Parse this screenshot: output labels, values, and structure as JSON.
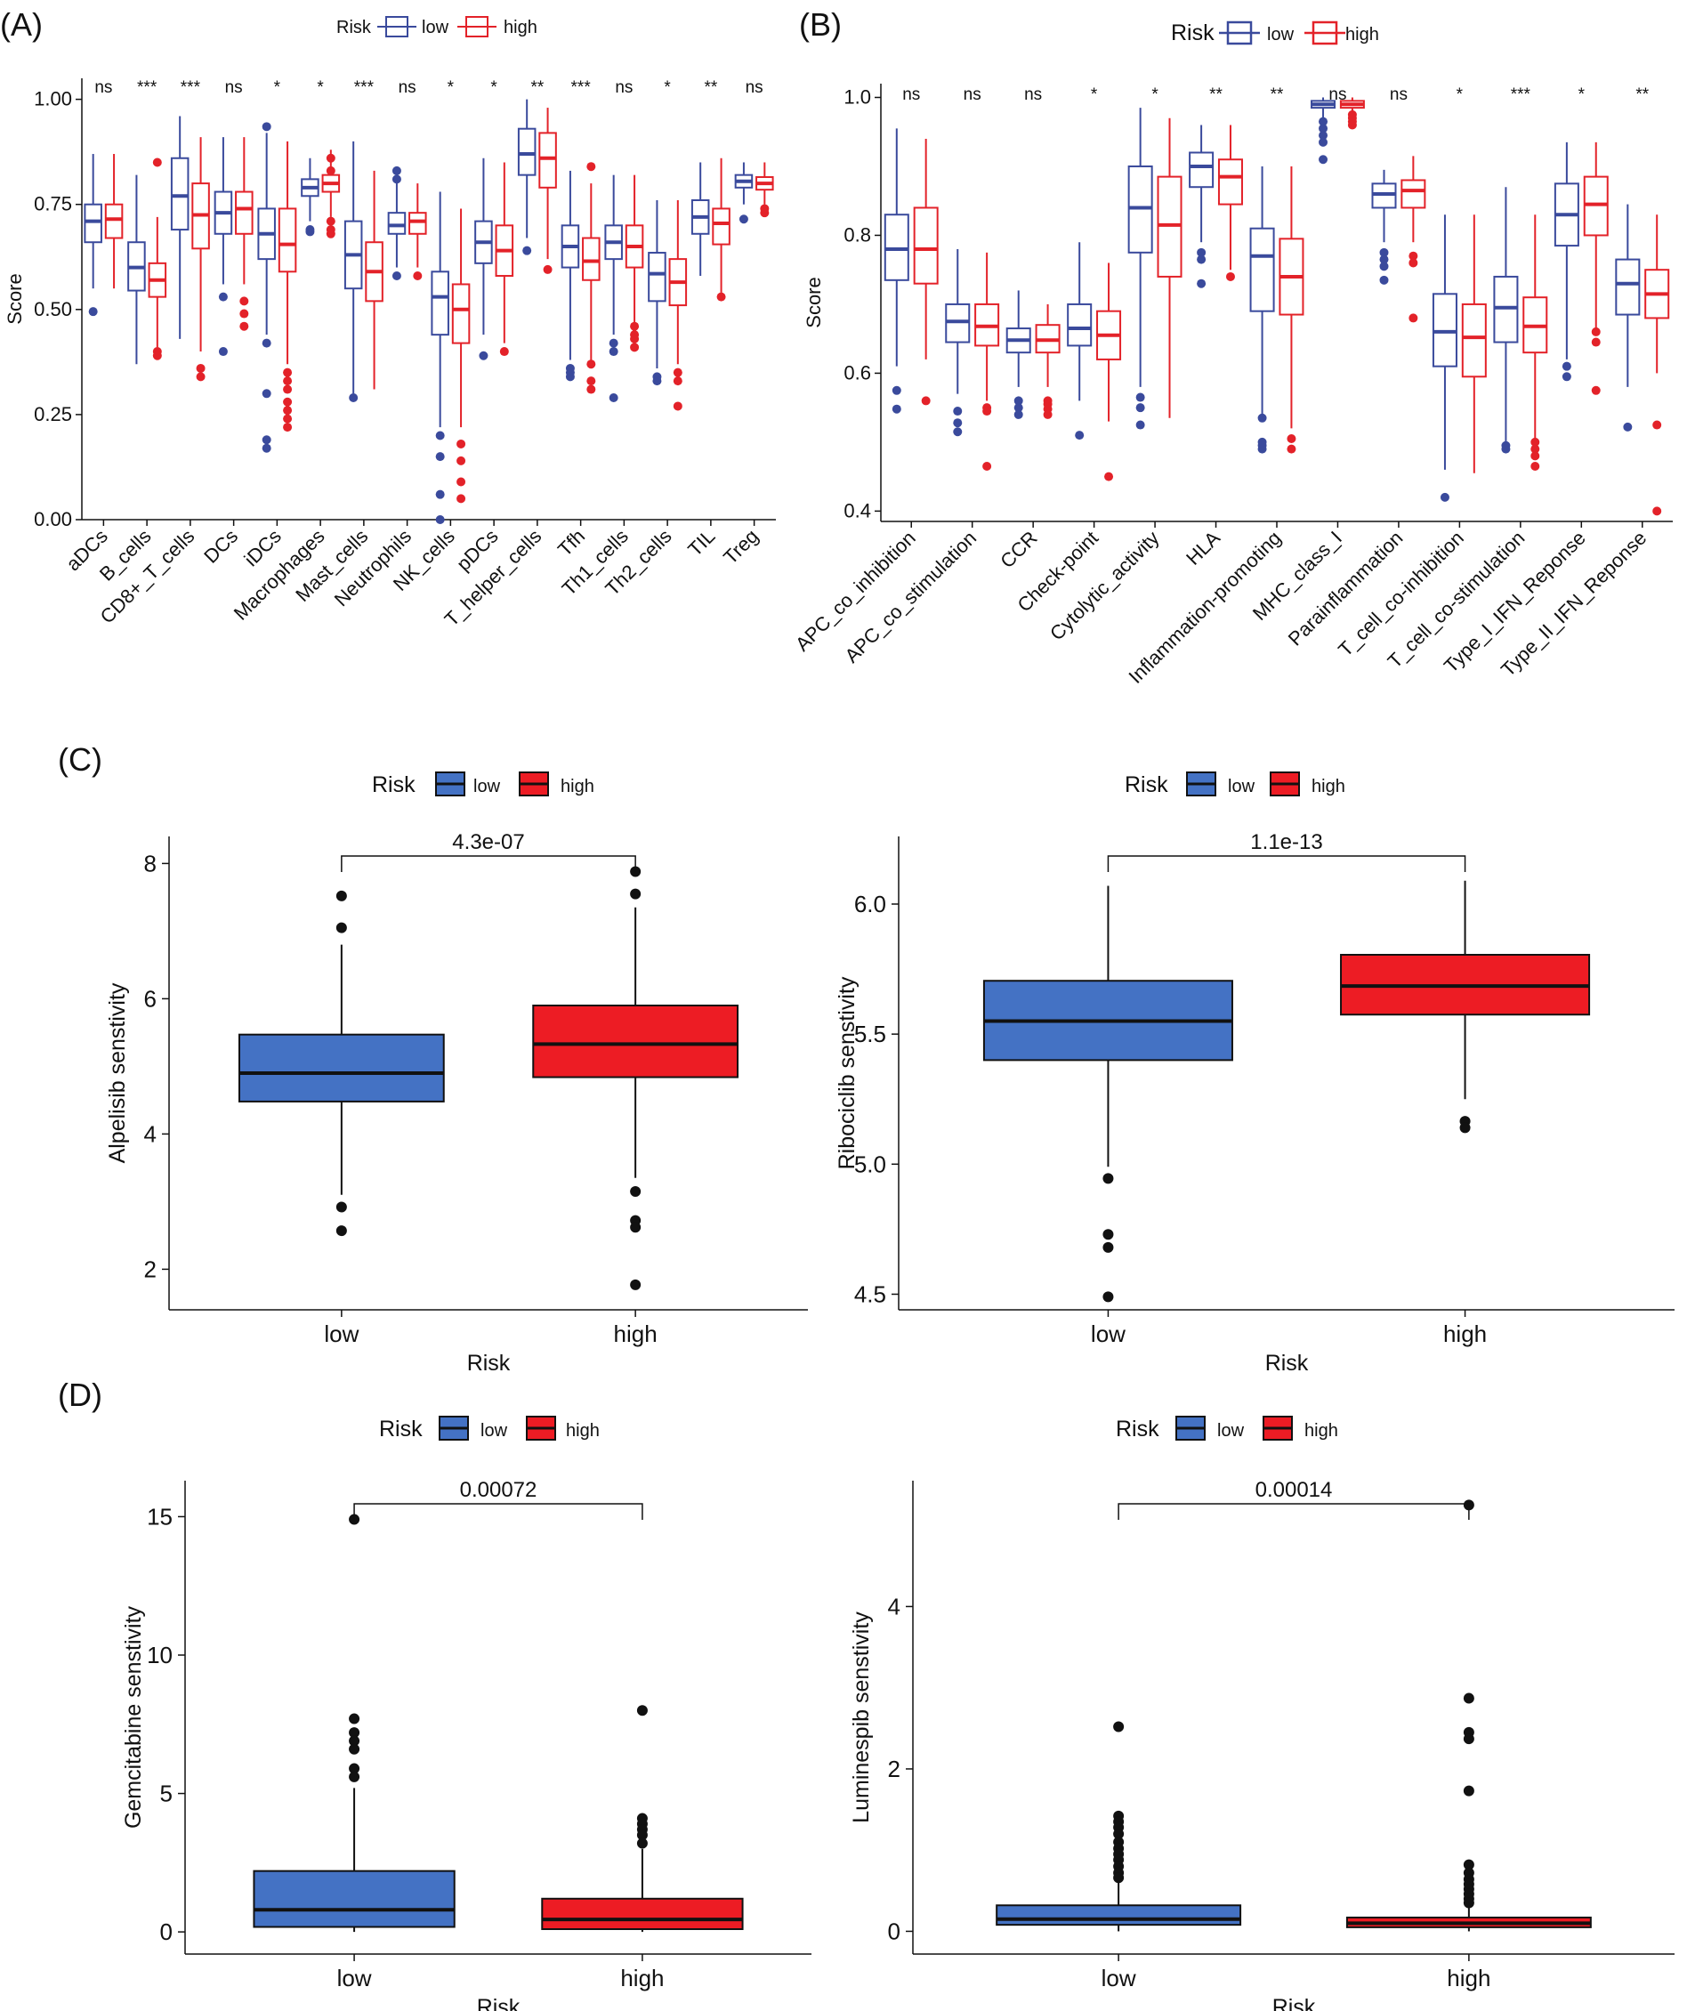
{
  "figure": {
    "panels": [
      "(A)",
      "(B)",
      "(C)",
      "(D)"
    ],
    "legend": {
      "title": "Risk",
      "low": "low",
      "high": "high"
    }
  },
  "colors": {
    "low_line": "#3a4a9c",
    "high_line": "#e32229",
    "low_fill": "#4472c4",
    "high_fill": "#ed1c24"
  },
  "chart_data": [
    {
      "id": "A",
      "type": "boxplot",
      "ylabel": "Score",
      "ylim": [
        0,
        1.05
      ],
      "yticks": [
        0.0,
        0.25,
        0.5,
        0.75,
        1.0
      ],
      "ytick_labels": [
        "0.00",
        "0.25",
        "0.50",
        "0.75",
        "1.00"
      ],
      "categories": [
        "aDCs",
        "B_cells",
        "CD8+_T_cells",
        "DCs",
        "iDCs",
        "Macrophages",
        "Mast_cells",
        "Neutrophils",
        "NK_cells",
        "pDCs",
        "T_helper_cells",
        "Tfh",
        "Th1_cells",
        "Th2_cells",
        "TIL",
        "Treg"
      ],
      "significance": [
        "ns",
        "***",
        "***",
        "ns",
        "*",
        "*",
        "***",
        "ns",
        "*",
        "*",
        "**",
        "***",
        "ns",
        "*",
        "**",
        "ns"
      ],
      "low": [
        {
          "q1": 0.66,
          "med": 0.71,
          "q3": 0.75,
          "wlo": 0.55,
          "whi": 0.87,
          "out": [
            0.495
          ]
        },
        {
          "q1": 0.545,
          "med": 0.6,
          "q3": 0.66,
          "wlo": 0.37,
          "whi": 0.82,
          "out": []
        },
        {
          "q1": 0.69,
          "med": 0.77,
          "q3": 0.86,
          "wlo": 0.43,
          "whi": 0.96,
          "out": []
        },
        {
          "q1": 0.68,
          "med": 0.73,
          "q3": 0.78,
          "wlo": 0.56,
          "whi": 0.91,
          "out": [
            0.53,
            0.4
          ]
        },
        {
          "q1": 0.62,
          "med": 0.68,
          "q3": 0.74,
          "wlo": 0.44,
          "whi": 0.92,
          "out": [
            0.935,
            0.42,
            0.3,
            0.19,
            0.17
          ]
        },
        {
          "q1": 0.77,
          "med": 0.79,
          "q3": 0.81,
          "wlo": 0.71,
          "whi": 0.86,
          "out": [
            0.685,
            0.69
          ]
        },
        {
          "q1": 0.55,
          "med": 0.63,
          "q3": 0.71,
          "wlo": 0.3,
          "whi": 0.9,
          "out": [
            0.29
          ]
        },
        {
          "q1": 0.68,
          "med": 0.7,
          "q3": 0.73,
          "wlo": 0.6,
          "whi": 0.82,
          "out": [
            0.83,
            0.81,
            0.58
          ]
        },
        {
          "q1": 0.44,
          "med": 0.53,
          "q3": 0.59,
          "wlo": 0.22,
          "whi": 0.78,
          "out": [
            0.2,
            0.15,
            0.06,
            0.0
          ]
        },
        {
          "q1": 0.61,
          "med": 0.66,
          "q3": 0.71,
          "wlo": 0.44,
          "whi": 0.86,
          "out": [
            0.39
          ]
        },
        {
          "q1": 0.82,
          "med": 0.87,
          "q3": 0.93,
          "wlo": 0.67,
          "whi": 1.0,
          "out": [
            0.64
          ]
        },
        {
          "q1": 0.6,
          "med": 0.65,
          "q3": 0.7,
          "wlo": 0.38,
          "whi": 0.83,
          "out": [
            0.36,
            0.35,
            0.34
          ]
        },
        {
          "q1": 0.62,
          "med": 0.66,
          "q3": 0.7,
          "wlo": 0.44,
          "whi": 0.82,
          "out": [
            0.42,
            0.4,
            0.29
          ]
        },
        {
          "q1": 0.52,
          "med": 0.585,
          "q3": 0.635,
          "wlo": 0.36,
          "whi": 0.76,
          "out": [
            0.34,
            0.33
          ]
        },
        {
          "q1": 0.68,
          "med": 0.72,
          "q3": 0.76,
          "wlo": 0.58,
          "whi": 0.85,
          "out": []
        },
        {
          "q1": 0.79,
          "med": 0.805,
          "q3": 0.82,
          "wlo": 0.75,
          "whi": 0.85,
          "out": [
            0.715
          ]
        }
      ],
      "high": [
        {
          "q1": 0.67,
          "med": 0.715,
          "q3": 0.75,
          "wlo": 0.55,
          "whi": 0.87,
          "out": []
        },
        {
          "q1": 0.53,
          "med": 0.57,
          "q3": 0.61,
          "wlo": 0.41,
          "whi": 0.72,
          "out": [
            0.85,
            0.4,
            0.39
          ]
        },
        {
          "q1": 0.645,
          "med": 0.725,
          "q3": 0.8,
          "wlo": 0.4,
          "whi": 0.91,
          "out": [
            0.36,
            0.34
          ]
        },
        {
          "q1": 0.68,
          "med": 0.74,
          "q3": 0.78,
          "wlo": 0.56,
          "whi": 0.91,
          "out": [
            0.52,
            0.49,
            0.46
          ]
        },
        {
          "q1": 0.59,
          "med": 0.655,
          "q3": 0.74,
          "wlo": 0.37,
          "whi": 0.9,
          "out": [
            0.35,
            0.33,
            0.31,
            0.28,
            0.26,
            0.24,
            0.22
          ]
        },
        {
          "q1": 0.78,
          "med": 0.8,
          "q3": 0.82,
          "wlo": 0.72,
          "whi": 0.88,
          "out": [
            0.86,
            0.83,
            0.71,
            0.69,
            0.68
          ]
        },
        {
          "q1": 0.52,
          "med": 0.59,
          "q3": 0.66,
          "wlo": 0.31,
          "whi": 0.83,
          "out": []
        },
        {
          "q1": 0.68,
          "med": 0.71,
          "q3": 0.73,
          "wlo": 0.6,
          "whi": 0.8,
          "out": [
            0.58
          ]
        },
        {
          "q1": 0.42,
          "med": 0.5,
          "q3": 0.56,
          "wlo": 0.22,
          "whi": 0.74,
          "out": [
            0.18,
            0.14,
            0.09,
            0.05
          ]
        },
        {
          "q1": 0.58,
          "med": 0.64,
          "q3": 0.7,
          "wlo": 0.42,
          "whi": 0.85,
          "out": [
            0.4
          ]
        },
        {
          "q1": 0.79,
          "med": 0.86,
          "q3": 0.92,
          "wlo": 0.62,
          "whi": 0.98,
          "out": [
            0.595
          ]
        },
        {
          "q1": 0.57,
          "med": 0.615,
          "q3": 0.67,
          "wlo": 0.38,
          "whi": 0.8,
          "out": [
            0.84,
            0.37,
            0.33,
            0.31
          ]
        },
        {
          "q1": 0.6,
          "med": 0.65,
          "q3": 0.7,
          "wlo": 0.47,
          "whi": 0.82,
          "out": [
            0.46,
            0.44,
            0.43,
            0.41
          ]
        },
        {
          "q1": 0.51,
          "med": 0.565,
          "q3": 0.62,
          "wlo": 0.37,
          "whi": 0.76,
          "out": [
            0.35,
            0.33,
            0.27
          ]
        },
        {
          "q1": 0.655,
          "med": 0.705,
          "q3": 0.74,
          "wlo": 0.54,
          "whi": 0.86,
          "out": [
            0.53
          ]
        },
        {
          "q1": 0.785,
          "med": 0.8,
          "q3": 0.815,
          "wlo": 0.75,
          "whi": 0.85,
          "out": [
            0.74,
            0.73
          ]
        }
      ]
    },
    {
      "id": "B",
      "type": "boxplot",
      "ylabel": "Score",
      "ylim": [
        0.385,
        1.02
      ],
      "yticks": [
        0.4,
        0.6,
        0.8,
        1.0
      ],
      "ytick_labels": [
        "0.4",
        "0.6",
        "0.8",
        "1.0"
      ],
      "categories": [
        "APC_co_inhibition",
        "APC_co_stimulation",
        "CCR",
        "Check-point",
        "Cytolytic_activity",
        "HLA",
        "Inflammation-promoting",
        "MHC_class_I",
        "Parainflammation",
        "T_cell_co-inhibition",
        "T_cell_co-stimulation",
        "Type_I_IFN_Reponse",
        "Type_II_IFN_Reponse"
      ],
      "significance": [
        "ns",
        "ns",
        "ns",
        "*",
        "*",
        "**",
        "**",
        "ns",
        "ns",
        "*",
        "***",
        "*",
        "**"
      ],
      "low": [
        {
          "q1": 0.735,
          "med": 0.78,
          "q3": 0.83,
          "wlo": 0.61,
          "whi": 0.955,
          "out": [
            0.575,
            0.548
          ]
        },
        {
          "q1": 0.645,
          "med": 0.675,
          "q3": 0.7,
          "wlo": 0.57,
          "whi": 0.78,
          "out": [
            0.545,
            0.528,
            0.515
          ]
        },
        {
          "q1": 0.63,
          "med": 0.648,
          "q3": 0.665,
          "wlo": 0.58,
          "whi": 0.72,
          "out": [
            0.56,
            0.55,
            0.54
          ]
        },
        {
          "q1": 0.64,
          "med": 0.665,
          "q3": 0.7,
          "wlo": 0.56,
          "whi": 0.79,
          "out": [
            0.51
          ]
        },
        {
          "q1": 0.775,
          "med": 0.84,
          "q3": 0.9,
          "wlo": 0.58,
          "whi": 0.985,
          "out": [
            0.565,
            0.55,
            0.525
          ]
        },
        {
          "q1": 0.87,
          "med": 0.9,
          "q3": 0.92,
          "wlo": 0.79,
          "whi": 0.96,
          "out": [
            0.775,
            0.765,
            0.73
          ]
        },
        {
          "q1": 0.69,
          "med": 0.77,
          "q3": 0.81,
          "wlo": 0.54,
          "whi": 0.9,
          "out": [
            0.535,
            0.5,
            0.495,
            0.49
          ]
        },
        {
          "q1": 0.985,
          "med": 0.99,
          "q3": 0.995,
          "wlo": 0.97,
          "whi": 1.0,
          "out": [
            0.965,
            0.955,
            0.945,
            0.935,
            0.91
          ]
        },
        {
          "q1": 0.84,
          "med": 0.86,
          "q3": 0.875,
          "wlo": 0.79,
          "whi": 0.895,
          "out": [
            0.775,
            0.765,
            0.755,
            0.735
          ]
        },
        {
          "q1": 0.61,
          "med": 0.66,
          "q3": 0.715,
          "wlo": 0.46,
          "whi": 0.83,
          "out": [
            0.42
          ]
        },
        {
          "q1": 0.645,
          "med": 0.695,
          "q3": 0.74,
          "wlo": 0.5,
          "whi": 0.87,
          "out": [
            0.495,
            0.49
          ]
        },
        {
          "q1": 0.785,
          "med": 0.83,
          "q3": 0.875,
          "wlo": 0.62,
          "whi": 0.935,
          "out": [
            0.61,
            0.595
          ]
        },
        {
          "q1": 0.685,
          "med": 0.73,
          "q3": 0.765,
          "wlo": 0.58,
          "whi": 0.845,
          "out": [
            0.522
          ]
        }
      ],
      "high": [
        {
          "q1": 0.73,
          "med": 0.78,
          "q3": 0.84,
          "wlo": 0.62,
          "whi": 0.94,
          "out": [
            0.56
          ]
        },
        {
          "q1": 0.64,
          "med": 0.668,
          "q3": 0.7,
          "wlo": 0.56,
          "whi": 0.775,
          "out": [
            0.55,
            0.545,
            0.465
          ]
        },
        {
          "q1": 0.63,
          "med": 0.648,
          "q3": 0.67,
          "wlo": 0.58,
          "whi": 0.7,
          "out": [
            0.56,
            0.555,
            0.548,
            0.54
          ]
        },
        {
          "q1": 0.62,
          "med": 0.655,
          "q3": 0.69,
          "wlo": 0.53,
          "whi": 0.76,
          "out": [
            0.45
          ]
        },
        {
          "q1": 0.74,
          "med": 0.815,
          "q3": 0.885,
          "wlo": 0.535,
          "whi": 0.97,
          "out": []
        },
        {
          "q1": 0.845,
          "med": 0.885,
          "q3": 0.91,
          "wlo": 0.75,
          "whi": 0.96,
          "out": [
            0.74
          ]
        },
        {
          "q1": 0.685,
          "med": 0.74,
          "q3": 0.795,
          "wlo": 0.52,
          "whi": 0.9,
          "out": [
            0.505,
            0.49
          ]
        },
        {
          "q1": 0.985,
          "med": 0.99,
          "q3": 0.995,
          "wlo": 0.975,
          "whi": 1.0,
          "out": [
            0.975,
            0.97,
            0.965,
            0.96
          ]
        },
        {
          "q1": 0.84,
          "med": 0.865,
          "q3": 0.88,
          "wlo": 0.79,
          "whi": 0.915,
          "out": [
            0.77,
            0.76,
            0.68
          ]
        },
        {
          "q1": 0.595,
          "med": 0.652,
          "q3": 0.7,
          "wlo": 0.455,
          "whi": 0.83,
          "out": []
        },
        {
          "q1": 0.63,
          "med": 0.668,
          "q3": 0.71,
          "wlo": 0.505,
          "whi": 0.83,
          "out": [
            0.5,
            0.49,
            0.48,
            0.465
          ]
        },
        {
          "q1": 0.8,
          "med": 0.845,
          "q3": 0.885,
          "wlo": 0.665,
          "whi": 0.935,
          "out": [
            0.66,
            0.645,
            0.575
          ]
        },
        {
          "q1": 0.68,
          "med": 0.715,
          "q3": 0.75,
          "wlo": 0.6,
          "whi": 0.83,
          "out": [
            0.525,
            0.4
          ]
        }
      ]
    },
    {
      "id": "C-left",
      "type": "boxplot",
      "xlabel": "Risk",
      "ylabel": "Alpelisib senstivity",
      "ylim": [
        1.4,
        8.4
      ],
      "yticks": [
        2,
        4,
        6,
        8
      ],
      "ytick_labels": [
        "2",
        "4",
        "6",
        "8"
      ],
      "categories": [
        "low",
        "high"
      ],
      "pvalue": "4.3e-07",
      "boxes": [
        {
          "q1": 4.48,
          "med": 4.9,
          "q3": 5.47,
          "wlo": 3.1,
          "whi": 6.8,
          "out": [
            7.52,
            7.05,
            2.92,
            2.57
          ]
        },
        {
          "q1": 4.84,
          "med": 5.33,
          "q3": 5.9,
          "wlo": 3.35,
          "whi": 7.35,
          "out": [
            7.88,
            7.55,
            3.15,
            2.72,
            2.62,
            1.77
          ]
        }
      ]
    },
    {
      "id": "C-right",
      "type": "boxplot",
      "xlabel": "Risk",
      "ylabel": "Ribociclib senstivity",
      "ylim": [
        4.44,
        6.26
      ],
      "yticks": [
        4.5,
        5.0,
        5.5,
        6.0
      ],
      "ytick_labels": [
        "4.5",
        "5.0",
        "5.5",
        "6.0"
      ],
      "categories": [
        "low",
        "high"
      ],
      "pvalue": "1.1e-13",
      "boxes": [
        {
          "q1": 5.4,
          "med": 5.55,
          "q3": 5.705,
          "wlo": 4.99,
          "whi": 6.07,
          "out": [
            4.945,
            4.73,
            4.68,
            4.49
          ]
        },
        {
          "q1": 5.575,
          "med": 5.685,
          "q3": 5.805,
          "wlo": 5.25,
          "whi": 6.09,
          "out": [
            5.165,
            5.14
          ]
        }
      ]
    },
    {
      "id": "D-left",
      "type": "boxplot",
      "xlabel": "Risk",
      "ylabel": "Gemcitabine senstivity",
      "ylim": [
        -0.8,
        16.3
      ],
      "yticks": [
        0,
        5,
        10,
        15
      ],
      "ytick_labels": [
        "0",
        "5",
        "10",
        "15"
      ],
      "categories": [
        "low",
        "high"
      ],
      "pvalue": "0.00072",
      "boxes": [
        {
          "q1": 0.18,
          "med": 0.8,
          "q3": 2.2,
          "wlo": 0.0,
          "whi": 5.2,
          "out": [
            14.9,
            7.7,
            7.2,
            6.9,
            6.6,
            5.9,
            5.6
          ]
        },
        {
          "q1": 0.1,
          "med": 0.45,
          "q3": 1.2,
          "wlo": 0.0,
          "whi": 3.0,
          "out": [
            8.0,
            4.1,
            3.9,
            3.7,
            3.5,
            3.2
          ]
        }
      ]
    },
    {
      "id": "D-right",
      "type": "boxplot",
      "xlabel": "Risk",
      "ylabel": "Luminespib senstivity",
      "ylim": [
        -0.28,
        5.55
      ],
      "yticks": [
        0,
        2,
        4
      ],
      "ytick_labels": [
        "0",
        "2",
        "4"
      ],
      "categories": [
        "low",
        "high"
      ],
      "pvalue": "0.00014",
      "boxes": [
        {
          "q1": 0.08,
          "med": 0.15,
          "q3": 0.32,
          "wlo": 0.0,
          "whi": 0.6,
          "out": [
            2.52,
            1.42,
            1.35,
            1.28,
            1.2,
            1.1,
            1.02,
            0.95,
            0.88,
            0.8,
            0.72,
            0.66
          ]
        },
        {
          "q1": 0.05,
          "med": 0.1,
          "q3": 0.17,
          "wlo": 0.0,
          "whi": 0.29,
          "out": [
            5.25,
            2.87,
            2.45,
            2.37,
            1.73,
            0.82,
            0.72,
            0.64,
            0.58,
            0.52,
            0.46,
            0.4,
            0.35
          ]
        }
      ]
    }
  ]
}
